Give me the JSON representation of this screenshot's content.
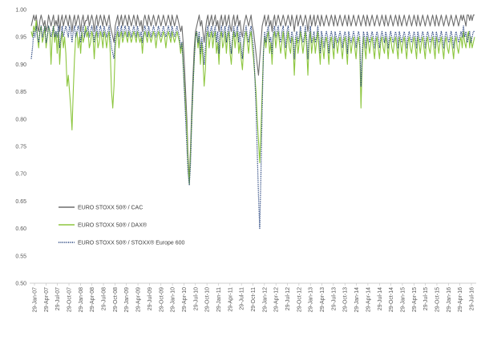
{
  "chart_data": {
    "type": "line",
    "title": "",
    "xlabel": "",
    "ylabel": "",
    "ylim": [
      0.5,
      1.0
    ],
    "yticks": [
      "0.50",
      "0.55",
      "0.60",
      "0.65",
      "0.70",
      "0.75",
      "0.80",
      "0.85",
      "0.90",
      "0.95",
      "1.00"
    ],
    "xticks": [
      "29-Jan-07",
      "29-Apr-07",
      "29-Jul-07",
      "29-Oct-07",
      "29-Jan-08",
      "29-Apr-08",
      "29-Jul-08",
      "29-Oct-08",
      "29-Jan-09",
      "29-Apr-09",
      "29-Jul-09",
      "29-Oct-09",
      "29-Jan-10",
      "29-Apr-10",
      "29-Jul-10",
      "29-Oct-10",
      "29-Jan-11",
      "29-Apr-11",
      "29-Jul-11",
      "29-Oct-11",
      "29-Jan-12",
      "29-Apr-12",
      "29-Jul-12",
      "29-Oct-12",
      "29-Jan-13",
      "29-Apr-13",
      "29-Jul-13",
      "29-Oct-13",
      "29-Jan-14",
      "29-Apr-14",
      "29-Jul-14",
      "29-Oct-14",
      "29-Jan-15",
      "29-Apr-15",
      "29-Jul-15",
      "29-Oct-15",
      "29-Jan-16",
      "29-Apr-16",
      "29-Jul-16"
    ],
    "grid": false,
    "legend_position": "left-middle",
    "x_index_note": "",
    "series": [
      {
        "name": "EURO STOXX 50® / CAC",
        "color": "#6d6d6d",
        "style": "solid",
        "values": [
          0.97,
          0.98,
          0.99,
          0.98,
          0.99,
          0.97,
          0.96,
          0.98,
          0.99,
          0.98,
          0.97,
          0.98,
          0.96,
          0.97,
          0.99,
          0.98,
          0.97,
          0.98,
          0.99,
          0.97,
          0.98,
          0.97,
          0.99,
          0.96,
          0.98,
          0.99,
          0.97,
          0.98,
          0.99,
          0.98,
          0.97,
          0.99,
          0.98,
          0.96,
          0.98,
          0.99,
          0.97,
          0.98,
          0.99,
          0.98,
          0.96,
          0.98,
          0.99,
          0.97,
          0.98,
          0.98,
          0.99,
          0.97,
          0.98,
          0.99,
          0.98,
          0.96,
          0.98,
          0.99,
          0.97,
          0.98,
          0.99,
          0.98,
          0.97,
          0.99,
          0.98,
          0.97,
          0.98,
          0.99,
          0.97,
          0.96,
          0.95,
          0.94,
          0.97,
          0.98,
          0.99,
          0.97,
          0.98,
          0.99,
          0.97,
          0.98,
          0.99,
          0.98,
          0.97,
          0.99,
          0.98,
          0.97,
          0.98,
          0.99,
          0.98,
          0.97,
          0.99,
          0.98,
          0.97,
          0.98,
          0.96,
          0.98,
          0.99,
          0.98,
          0.97,
          0.99,
          0.98,
          0.97,
          0.98,
          0.99,
          0.98,
          0.97,
          0.98,
          0.99,
          0.98,
          0.97,
          0.98,
          0.99,
          0.98,
          0.97,
          0.98,
          0.99,
          0.98,
          0.97,
          0.99,
          0.98,
          0.97,
          0.98,
          0.99,
          0.98,
          0.97,
          0.96,
          0.97,
          0.94,
          0.9,
          0.85,
          0.8,
          0.73,
          0.69,
          0.75,
          0.82,
          0.88,
          0.93,
          0.96,
          0.97,
          0.98,
          0.99,
          0.97,
          0.98,
          0.96,
          0.94,
          0.96,
          0.98,
          0.99,
          0.97,
          0.98,
          0.99,
          0.97,
          0.98,
          0.99,
          0.97,
          0.98,
          0.96,
          0.98,
          0.99,
          0.97,
          0.98,
          0.99,
          0.97,
          0.98,
          0.99,
          0.97,
          0.96,
          0.98,
          0.99,
          0.97,
          0.98,
          0.99,
          0.97,
          0.98,
          0.96,
          0.95,
          0.97,
          0.98,
          0.99,
          0.98,
          0.97,
          0.98,
          0.99,
          0.97,
          0.96,
          0.94,
          0.92,
          0.9,
          0.88,
          0.91,
          0.94,
          0.97,
          0.98,
          0.99,
          0.97,
          0.98,
          0.99,
          0.97,
          0.98,
          0.96,
          0.98,
          0.99,
          0.97,
          0.98,
          0.99,
          0.98,
          0.97,
          0.98,
          0.99,
          0.98,
          0.97,
          0.98,
          0.99,
          0.98,
          0.97,
          0.99,
          0.98,
          0.96,
          0.98,
          0.99,
          0.97,
          0.98,
          0.99,
          0.98,
          0.97,
          0.98,
          0.99,
          0.98,
          0.96,
          0.98,
          0.99,
          0.97,
          0.98,
          0.99,
          0.97,
          0.98,
          0.99,
          0.98,
          0.97,
          0.99,
          0.98,
          0.97,
          0.98,
          0.99,
          0.98,
          0.97,
          0.98,
          0.99,
          0.98,
          0.97,
          0.99,
          0.98,
          0.97,
          0.98,
          0.99,
          0.98,
          0.97,
          0.98,
          0.99,
          0.98,
          0.97,
          0.99,
          0.98,
          0.97,
          0.98,
          0.99,
          0.98,
          0.97,
          0.98,
          0.99,
          0.98,
          0.97,
          0.98,
          0.99,
          0.98,
          0.97,
          0.99,
          0.98,
          0.97,
          0.98,
          0.99,
          0.98,
          0.97,
          0.98,
          0.99,
          0.98,
          0.97,
          0.98,
          0.99,
          0.98,
          0.97,
          0.99,
          0.98,
          0.97,
          0.98,
          0.99,
          0.98,
          0.97,
          0.98,
          0.99,
          0.98,
          0.97,
          0.99,
          0.98,
          0.97,
          0.98,
          0.99,
          0.98,
          0.97,
          0.98,
          0.99,
          0.98,
          0.97,
          0.98,
          0.99,
          0.98,
          0.97,
          0.99,
          0.98,
          0.97,
          0.98,
          0.99,
          0.98,
          0.97,
          0.98,
          0.99,
          0.98,
          0.97,
          0.98,
          0.99,
          0.98,
          0.97,
          0.99,
          0.98,
          0.97,
          0.98,
          0.99,
          0.98,
          0.97,
          0.98,
          0.99,
          0.98,
          0.97,
          0.98,
          0.99,
          0.98,
          0.97,
          0.98,
          0.99,
          0.98,
          0.97,
          0.98,
          0.99,
          0.98,
          0.99,
          0.98,
          0.97,
          0.99,
          0.99,
          0.98,
          0.99,
          0.98,
          0.99,
          0.99
        ]
      },
      {
        "name": "EURO STOXX 50® / DAX®",
        "color": "#8dc63f",
        "style": "solid",
        "values": [
          0.96,
          0.95,
          0.97,
          0.96,
          0.98,
          0.95,
          0.93,
          0.96,
          0.97,
          0.94,
          0.95,
          0.97,
          0.93,
          0.95,
          0.97,
          0.96,
          0.9,
          0.95,
          0.97,
          0.94,
          0.96,
          0.92,
          0.96,
          0.9,
          0.94,
          0.96,
          0.93,
          0.95,
          0.92,
          0.86,
          0.88,
          0.85,
          0.82,
          0.78,
          0.85,
          0.91,
          0.95,
          0.96,
          0.93,
          0.95,
          0.92,
          0.96,
          0.94,
          0.95,
          0.97,
          0.95,
          0.96,
          0.93,
          0.94,
          0.96,
          0.95,
          0.91,
          0.95,
          0.96,
          0.93,
          0.94,
          0.96,
          0.95,
          0.93,
          0.96,
          0.95,
          0.93,
          0.95,
          0.96,
          0.92,
          0.85,
          0.82,
          0.86,
          0.93,
          0.95,
          0.96,
          0.93,
          0.95,
          0.96,
          0.94,
          0.95,
          0.96,
          0.95,
          0.94,
          0.96,
          0.95,
          0.94,
          0.95,
          0.96,
          0.95,
          0.94,
          0.96,
          0.95,
          0.94,
          0.95,
          0.92,
          0.95,
          0.96,
          0.95,
          0.94,
          0.96,
          0.95,
          0.94,
          0.95,
          0.96,
          0.95,
          0.93,
          0.95,
          0.96,
          0.95,
          0.94,
          0.95,
          0.96,
          0.95,
          0.93,
          0.95,
          0.96,
          0.95,
          0.94,
          0.96,
          0.95,
          0.94,
          0.95,
          0.96,
          0.95,
          0.94,
          0.92,
          0.94,
          0.9,
          0.86,
          0.82,
          0.78,
          0.72,
          0.68,
          0.74,
          0.8,
          0.86,
          0.91,
          0.95,
          0.96,
          0.93,
          0.95,
          0.9,
          0.94,
          0.91,
          0.86,
          0.89,
          0.95,
          0.96,
          0.93,
          0.95,
          0.96,
          0.93,
          0.95,
          0.96,
          0.92,
          0.94,
          0.9,
          0.95,
          0.96,
          0.93,
          0.94,
          0.96,
          0.92,
          0.95,
          0.96,
          0.92,
          0.9,
          0.94,
          0.96,
          0.93,
          0.95,
          0.96,
          0.92,
          0.94,
          0.91,
          0.89,
          0.93,
          0.95,
          0.96,
          0.94,
          0.92,
          0.95,
          0.96,
          0.93,
          0.91,
          0.88,
          0.85,
          0.8,
          0.76,
          0.72,
          0.78,
          0.85,
          0.92,
          0.95,
          0.93,
          0.95,
          0.96,
          0.92,
          0.94,
          0.9,
          0.95,
          0.96,
          0.93,
          0.95,
          0.96,
          0.94,
          0.92,
          0.94,
          0.96,
          0.93,
          0.91,
          0.94,
          0.96,
          0.93,
          0.92,
          0.95,
          0.94,
          0.88,
          0.93,
          0.95,
          0.92,
          0.94,
          0.96,
          0.94,
          0.92,
          0.94,
          0.96,
          0.93,
          0.88,
          0.94,
          0.96,
          0.92,
          0.94,
          0.95,
          0.92,
          0.94,
          0.96,
          0.93,
          0.9,
          0.95,
          0.93,
          0.91,
          0.94,
          0.95,
          0.93,
          0.9,
          0.94,
          0.95,
          0.93,
          0.91,
          0.95,
          0.94,
          0.92,
          0.94,
          0.95,
          0.93,
          0.91,
          0.94,
          0.95,
          0.93,
          0.9,
          0.95,
          0.94,
          0.92,
          0.94,
          0.95,
          0.93,
          0.91,
          0.94,
          0.95,
          0.93,
          0.82,
          0.9,
          0.95,
          0.93,
          0.91,
          0.95,
          0.94,
          0.92,
          0.94,
          0.95,
          0.93,
          0.91,
          0.94,
          0.95,
          0.93,
          0.91,
          0.94,
          0.95,
          0.93,
          0.92,
          0.95,
          0.94,
          0.91,
          0.94,
          0.95,
          0.93,
          0.92,
          0.94,
          0.95,
          0.93,
          0.91,
          0.95,
          0.94,
          0.92,
          0.94,
          0.95,
          0.93,
          0.91,
          0.94,
          0.95,
          0.93,
          0.92,
          0.94,
          0.95,
          0.93,
          0.91,
          0.95,
          0.94,
          0.92,
          0.94,
          0.95,
          0.93,
          0.91,
          0.94,
          0.95,
          0.93,
          0.92,
          0.94,
          0.95,
          0.93,
          0.91,
          0.95,
          0.94,
          0.92,
          0.94,
          0.95,
          0.93,
          0.91,
          0.94,
          0.95,
          0.93,
          0.92,
          0.94,
          0.95,
          0.93,
          0.91,
          0.94,
          0.95,
          0.93,
          0.92,
          0.94,
          0.95,
          0.93,
          0.96,
          0.94,
          0.93,
          0.95,
          0.96,
          0.93,
          0.95,
          0.93,
          0.94,
          0.95
        ]
      },
      {
        "name": "EURO STOXX 50® / STOXX® Europe 600",
        "color": "#1f3d7a",
        "style": "dotted",
        "values": [
          0.91,
          0.93,
          0.96,
          0.95,
          0.97,
          0.95,
          0.94,
          0.96,
          0.97,
          0.95,
          0.96,
          0.97,
          0.94,
          0.95,
          0.97,
          0.96,
          0.95,
          0.96,
          0.97,
          0.95,
          0.96,
          0.95,
          0.97,
          0.93,
          0.95,
          0.97,
          0.95,
          0.96,
          0.97,
          0.96,
          0.95,
          0.97,
          0.96,
          0.94,
          0.96,
          0.97,
          0.95,
          0.96,
          0.97,
          0.96,
          0.94,
          0.96,
          0.97,
          0.95,
          0.96,
          0.96,
          0.97,
          0.95,
          0.96,
          0.97,
          0.96,
          0.94,
          0.96,
          0.97,
          0.95,
          0.96,
          0.97,
          0.96,
          0.95,
          0.97,
          0.96,
          0.95,
          0.96,
          0.97,
          0.95,
          0.93,
          0.92,
          0.91,
          0.95,
          0.96,
          0.97,
          0.95,
          0.96,
          0.97,
          0.95,
          0.96,
          0.97,
          0.96,
          0.95,
          0.97,
          0.96,
          0.95,
          0.96,
          0.97,
          0.96,
          0.95,
          0.97,
          0.96,
          0.95,
          0.96,
          0.94,
          0.96,
          0.97,
          0.96,
          0.95,
          0.97,
          0.96,
          0.95,
          0.96,
          0.97,
          0.96,
          0.95,
          0.96,
          0.97,
          0.96,
          0.95,
          0.96,
          0.97,
          0.96,
          0.95,
          0.96,
          0.97,
          0.96,
          0.95,
          0.97,
          0.96,
          0.95,
          0.96,
          0.97,
          0.96,
          0.95,
          0.93,
          0.94,
          0.9,
          0.85,
          0.8,
          0.75,
          0.7,
          0.68,
          0.72,
          0.8,
          0.86,
          0.91,
          0.95,
          0.96,
          0.94,
          0.96,
          0.92,
          0.95,
          0.93,
          0.9,
          0.93,
          0.96,
          0.97,
          0.95,
          0.96,
          0.97,
          0.95,
          0.96,
          0.97,
          0.94,
          0.96,
          0.92,
          0.96,
          0.97,
          0.95,
          0.96,
          0.97,
          0.94,
          0.96,
          0.97,
          0.94,
          0.92,
          0.95,
          0.97,
          0.95,
          0.96,
          0.97,
          0.94,
          0.96,
          0.93,
          0.91,
          0.95,
          0.96,
          0.97,
          0.95,
          0.94,
          0.96,
          0.97,
          0.95,
          0.93,
          0.88,
          0.82,
          0.74,
          0.66,
          0.6,
          0.7,
          0.82,
          0.92,
          0.96,
          0.94,
          0.96,
          0.97,
          0.94,
          0.95,
          0.92,
          0.96,
          0.97,
          0.95,
          0.96,
          0.97,
          0.95,
          0.94,
          0.96,
          0.97,
          0.95,
          0.93,
          0.96,
          0.97,
          0.95,
          0.94,
          0.96,
          0.95,
          0.91,
          0.95,
          0.96,
          0.94,
          0.95,
          0.97,
          0.95,
          0.94,
          0.95,
          0.97,
          0.95,
          0.91,
          0.95,
          0.97,
          0.94,
          0.95,
          0.96,
          0.94,
          0.95,
          0.97,
          0.95,
          0.92,
          0.96,
          0.95,
          0.93,
          0.95,
          0.96,
          0.95,
          0.92,
          0.95,
          0.96,
          0.95,
          0.93,
          0.96,
          0.95,
          0.94,
          0.95,
          0.96,
          0.95,
          0.93,
          0.95,
          0.96,
          0.95,
          0.92,
          0.96,
          0.95,
          0.94,
          0.95,
          0.96,
          0.95,
          0.93,
          0.95,
          0.96,
          0.95,
          0.86,
          0.92,
          0.96,
          0.95,
          0.93,
          0.96,
          0.95,
          0.94,
          0.95,
          0.96,
          0.95,
          0.93,
          0.95,
          0.96,
          0.95,
          0.93,
          0.95,
          0.96,
          0.95,
          0.94,
          0.96,
          0.95,
          0.93,
          0.95,
          0.96,
          0.95,
          0.94,
          0.95,
          0.96,
          0.95,
          0.93,
          0.96,
          0.95,
          0.94,
          0.95,
          0.96,
          0.95,
          0.93,
          0.95,
          0.96,
          0.95,
          0.94,
          0.95,
          0.96,
          0.95,
          0.93,
          0.96,
          0.95,
          0.94,
          0.95,
          0.96,
          0.95,
          0.93,
          0.95,
          0.96,
          0.95,
          0.94,
          0.95,
          0.96,
          0.95,
          0.93,
          0.96,
          0.95,
          0.94,
          0.95,
          0.96,
          0.95,
          0.93,
          0.95,
          0.96,
          0.95,
          0.94,
          0.95,
          0.96,
          0.95,
          0.93,
          0.95,
          0.96,
          0.95,
          0.94,
          0.95,
          0.96,
          0.95,
          0.97,
          0.95,
          0.96,
          0.94,
          0.95,
          0.96,
          0.94,
          0.95,
          0.96,
          0.96
        ]
      }
    ]
  }
}
